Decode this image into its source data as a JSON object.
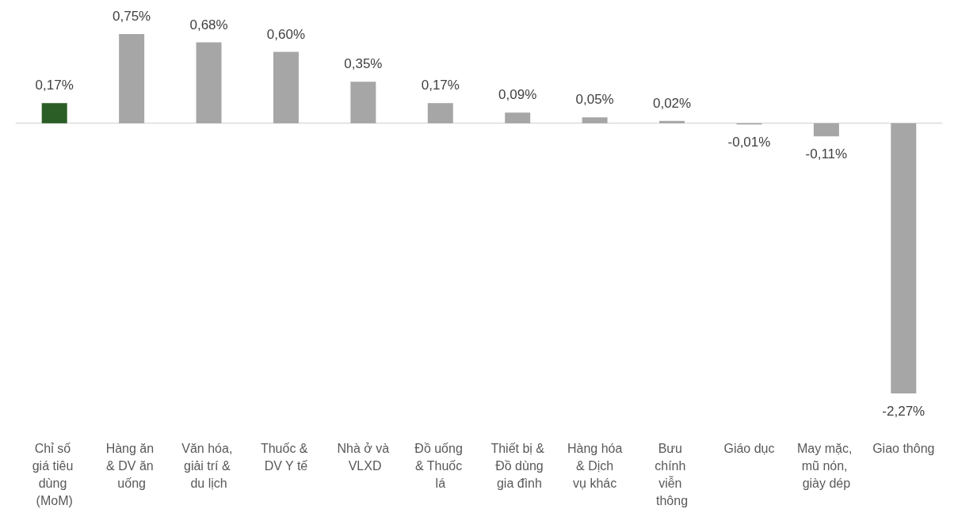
{
  "chart_data": {
    "type": "bar",
    "categories": [
      "Chỉ số giá tiêu dùng (MoM)",
      "Hàng ăn & DV ăn uống",
      "Văn hóa, giải trí & du lịch",
      "Thuốc & DV Y tế",
      "Nhà ở và VLXD",
      "Đồ uống & Thuốc lá",
      "Thiết bị & Đồ dùng gia đình",
      "Hàng hóa & Dịch vụ khác",
      "Bưu chính viễn thông",
      "Giáo dục",
      "May mặc, mũ nón, giày dép",
      "Giao thông"
    ],
    "values": [
      0.17,
      0.75,
      0.68,
      0.6,
      0.35,
      0.17,
      0.09,
      0.05,
      0.02,
      -0.01,
      -0.11,
      -2.27
    ],
    "colors": [
      "#2b5e26",
      "#a6a6a6",
      "#a6a6a6",
      "#a6a6a6",
      "#a6a6a6",
      "#a6a6a6",
      "#a6a6a6",
      "#a6a6a6",
      "#a6a6a6",
      "#a6a6a6",
      "#a6a6a6",
      "#a6a6a6"
    ],
    "value_labels": [
      "0,17%",
      "0,75%",
      "0,68%",
      "0,60%",
      "0,35%",
      "0,17%",
      "0,09%",
      "0,05%",
      "0,02%",
      "-0,01%",
      "-0,11%",
      "-2,27%"
    ],
    "tick_labels": "x",
    "grid": false
  }
}
